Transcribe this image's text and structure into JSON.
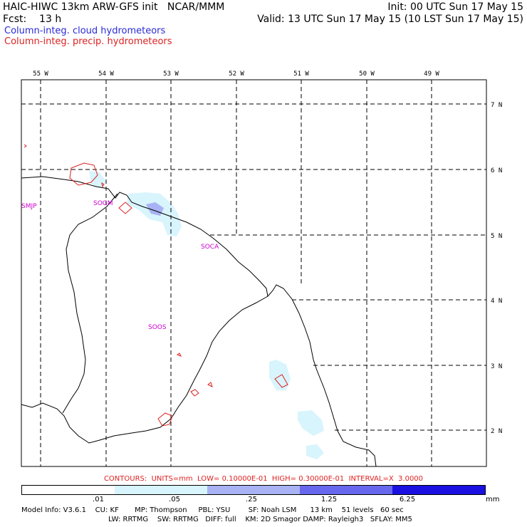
{
  "header": {
    "model_title": "HAIC-HIWC 13km ARW-GFS init   NCAR/MMM",
    "init": "Init: 00 UTC Sun 17 May 15",
    "fcst": "Fcst:    13 h",
    "valid": "Valid: 13 UTC Sun 17 May 15 (10 LST Sun 17 May 15)",
    "field_cloud": "Column-integ. cloud hydrometeors",
    "field_precip": "Column-integ. precip. hydrometeors"
  },
  "map": {
    "lon_labels": [
      "55 W",
      "54 W",
      "53 W",
      "52 W",
      "51 W",
      "50 W",
      "49 W"
    ],
    "lat_labels": [
      "7 N",
      "6 N",
      "5 N",
      "4 N",
      "3 N",
      "2 N"
    ],
    "stations": [
      "SMJP",
      "SOGM",
      "SOCA",
      "SOOS"
    ],
    "colors": {
      "coast": "#000000",
      "precip_contour": "#dd2222",
      "station": "#cc00cc"
    }
  },
  "contour_line": "CONTOURS:  UNITS=mm  LOW= 0.10000E-01  HIGH= 0.30000E-01  INTERVAL=X  3.0000",
  "colorbar": {
    "labels": [
      ".01",
      ".05",
      ".25",
      "1.25",
      "6.25"
    ],
    "unit": "mm",
    "colors": [
      "#ffffff",
      "#d8f4fc",
      "#a8b2f4",
      "#6868ee",
      "#1a10e2"
    ]
  },
  "footer": {
    "line1": "Model Info: V3.6.1    CU: KF       MP: Thompson     PBL: YSU        SF: Noah LSM      13 km    51 levels   60 sec",
    "line2": "LW: RRTMG    SW: RRTMG   DIFF: full    KM: 2D Smagor DAMP: Rayleigh3   SFLAY: MM5"
  }
}
